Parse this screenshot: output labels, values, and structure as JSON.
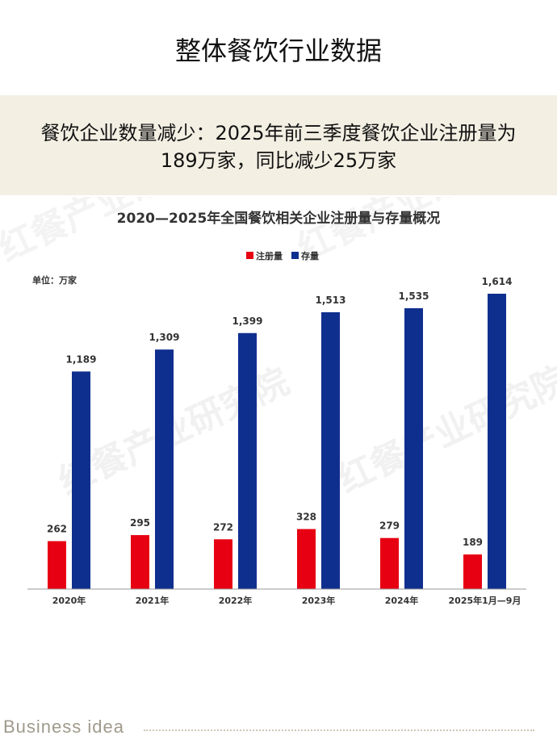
{
  "page": {
    "title": "整体餐饮行业数据",
    "summary_line1": "餐饮企业数量减少：2025年前三季度餐饮企业注册量为",
    "summary_line2": "189万家，同比减少25万家",
    "footer": "Business  idea"
  },
  "chart_data": {
    "type": "bar",
    "title": "2020—2025年全国餐饮相关企业注册量与存量概况",
    "unit_label": "单位：万家",
    "watermark": "红餐产业研究院",
    "categories": [
      "2020年",
      "2021年",
      "2022年",
      "2023年",
      "2024年",
      "2025年1月—9月"
    ],
    "series": [
      {
        "name": "注册量",
        "color": "#e60012",
        "values": [
          262,
          295,
          272,
          328,
          279,
          189
        ],
        "labels": [
          "262",
          "295",
          "272",
          "328",
          "279",
          "189"
        ]
      },
      {
        "name": "存量",
        "color": "#0f2f8f",
        "values": [
          1189,
          1309,
          1399,
          1513,
          1535,
          1614
        ],
        "labels": [
          "1,189",
          "1,309",
          "1,399",
          "1,513",
          "1,535",
          "1,614"
        ]
      }
    ],
    "ylim": [
      0,
      1614
    ],
    "grid": false,
    "legend_position": "top-center"
  }
}
